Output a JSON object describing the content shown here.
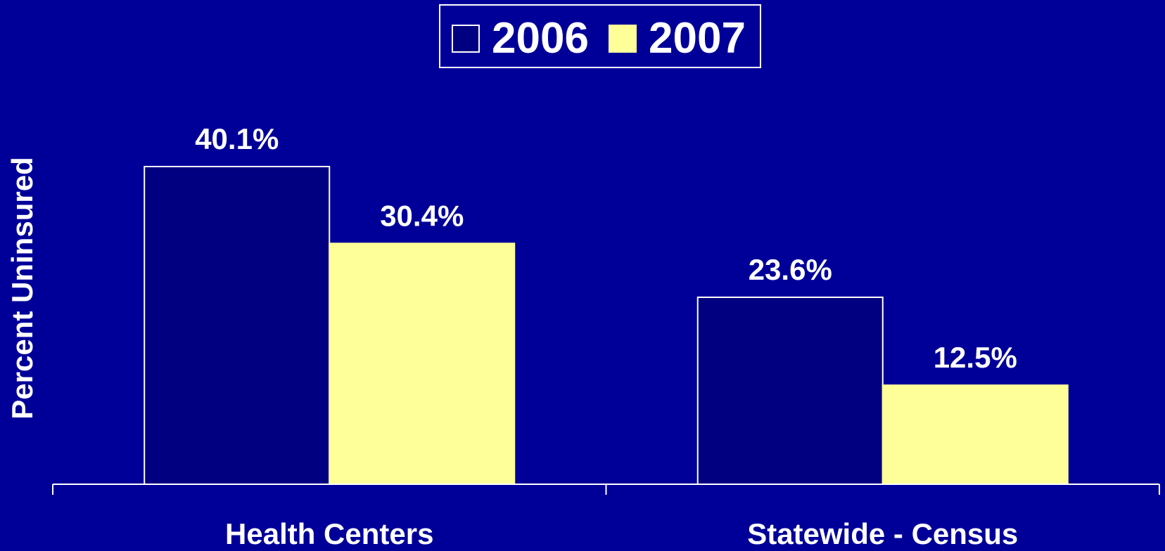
{
  "chart_data": {
    "type": "bar",
    "title": "",
    "xlabel": "",
    "ylabel": "Percent Uninsured",
    "categories": [
      "Health Centers",
      "Statewide - Census"
    ],
    "series": [
      {
        "name": "2006",
        "values": [
          40.1,
          23.6
        ],
        "labels": [
          "40.1%",
          "23.6%"
        ],
        "color": "#000080"
      },
      {
        "name": "2007",
        "values": [
          30.4,
          12.5
        ],
        "labels": [
          "30.4%",
          "12.5%"
        ],
        "color": "#ffff99"
      }
    ],
    "ylim": [
      0,
      40.1
    ],
    "grid": false,
    "legend_position": "top-center",
    "background_color": "#000099",
    "outline_color": "#ffffff"
  }
}
